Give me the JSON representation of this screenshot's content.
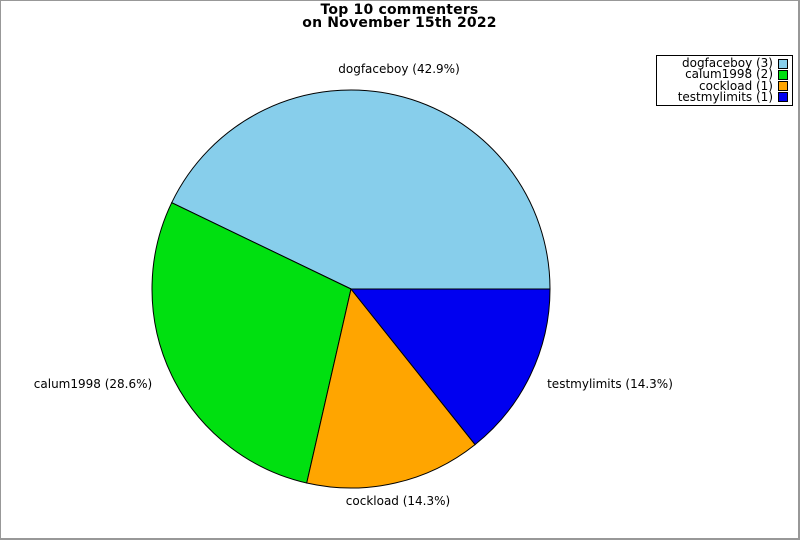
{
  "frame": {
    "background": "#FFFFFF",
    "border_color": "#989898"
  },
  "chart_data": {
    "type": "pie",
    "title": "Top 10 commenters",
    "subtitle": "on November 15th 2022",
    "start_angle_deg": 0,
    "direction": "counterclockwise",
    "legend_position": "top-right",
    "outline_color": "#000000",
    "total": 7,
    "slices": [
      {
        "name": "dogfaceboy",
        "count": 3,
        "pct": 42.9,
        "label": "dogfaceboy (42.9%)",
        "legend_label": "dogfaceboy (3)",
        "color": "#87CEEB"
      },
      {
        "name": "calum1998",
        "count": 2,
        "pct": 28.6,
        "label": "calum1998 (28.6%)",
        "legend_label": "calum1998 (2)",
        "color": "#00E010"
      },
      {
        "name": "cockload",
        "count": 1,
        "pct": 14.3,
        "label": "cockload (14.3%)",
        "legend_label": "cockload (1)",
        "color": "#FFA500"
      },
      {
        "name": "testmylimits",
        "count": 1,
        "pct": 14.3,
        "label": "testmylimits (14.3%)",
        "legend_label": "testmylimits (1)",
        "color": "#0000F0"
      }
    ]
  }
}
